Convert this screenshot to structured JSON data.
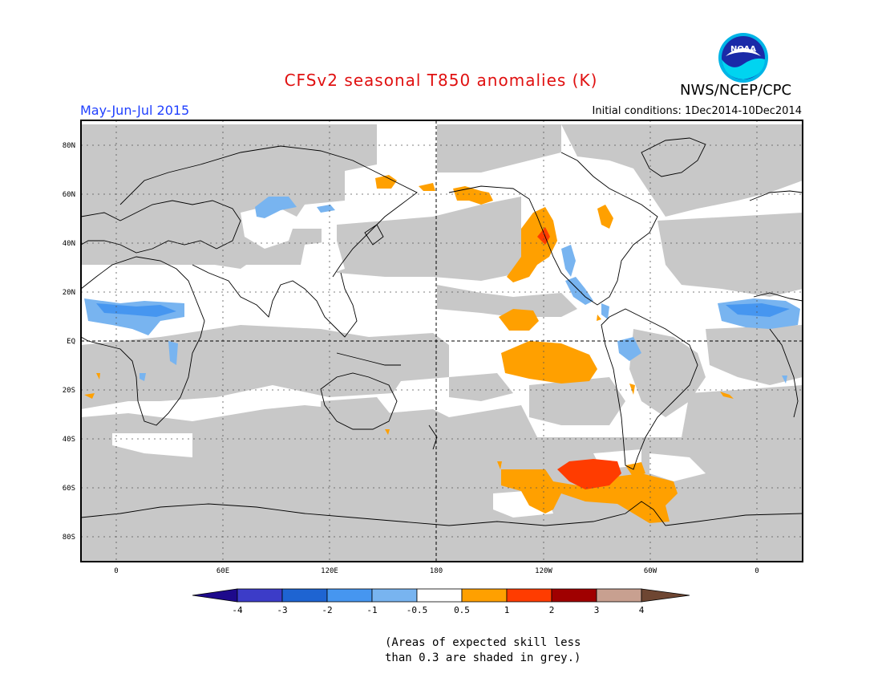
{
  "header": {
    "title": "CFSv2 seasonal T850 anomalies (K)",
    "agency": "NWS/NCEP/CPC",
    "period": "May-Jun-Jul 2015",
    "initial_conditions": "Initial conditions: 1Dec2014-10Dec2014",
    "logo_text": "NOAA"
  },
  "map": {
    "lat_labels": [
      "80N",
      "60N",
      "40N",
      "20N",
      "EQ",
      "20S",
      "40S",
      "60S",
      "80S"
    ],
    "lon_labels": [
      "0",
      "60E",
      "120E",
      "180",
      "120W",
      "60W",
      "0"
    ],
    "colors": {
      "grey": "#c8c8c8",
      "lt_blue": "#78b4f0",
      "blue": "#4696f0",
      "orange": "#ffa000",
      "red_orange": "#ff3c00"
    }
  },
  "colorbar": {
    "labels": [
      "-4",
      "-3",
      "-2",
      "-1",
      "-0.5",
      "0.5",
      "1",
      "2",
      "3",
      "4"
    ],
    "colors": [
      "#1e0a8c",
      "#3c3cc8",
      "#1e64d2",
      "#4696f0",
      "#78b4f0",
      "#ffffff",
      "#ffa000",
      "#ff3c00",
      "#a00000",
      "#c8a090",
      "#6e4632"
    ]
  },
  "note": {
    "line1": "(Areas of expected skill less",
    "line2": "than 0.3 are shaded in grey.)"
  }
}
